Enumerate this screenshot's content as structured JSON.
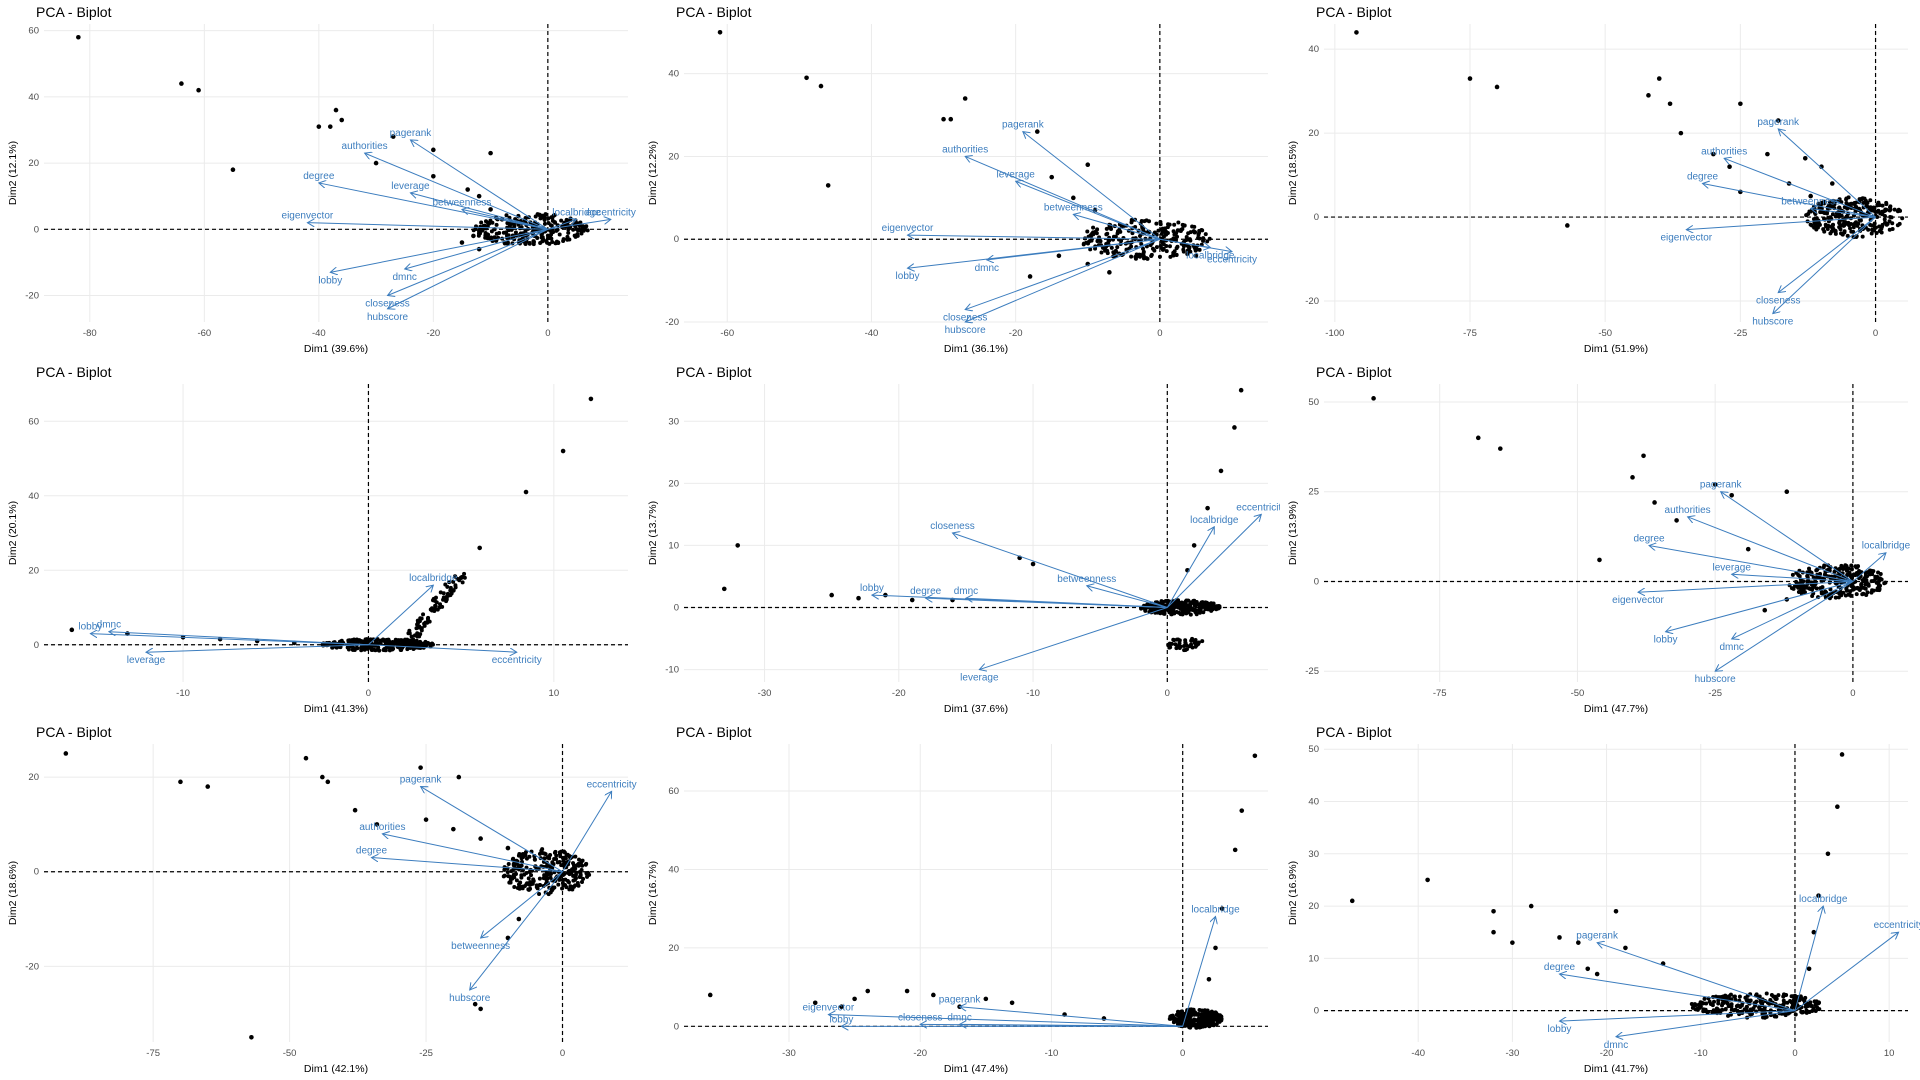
{
  "figure": {
    "colors": {
      "arrow": "#3C7DBE",
      "point": "#000000",
      "grid": "#EBEBEB",
      "axis_text": "#4D4D4D"
    }
  },
  "chart_data": [
    {
      "type": "scatter",
      "subtype": "pca-biplot",
      "title": "PCA - Biplot",
      "xlabel": "Dim1 (39.6%)",
      "ylabel": "Dim2 (12.1%)",
      "xlim": [
        -88,
        14
      ],
      "ylim": [
        -28,
        62
      ],
      "xticks": [
        -80,
        -60,
        -40,
        -20,
        0
      ],
      "yticks": [
        -20,
        0,
        20,
        40,
        60
      ],
      "points": [
        [
          -82,
          58
        ],
        [
          -64,
          44
        ],
        [
          -61,
          42
        ],
        [
          -55,
          18
        ],
        [
          -40,
          31
        ],
        [
          -38,
          31
        ],
        [
          -37,
          36
        ],
        [
          -36,
          33
        ],
        [
          -27,
          28
        ],
        [
          -20,
          24
        ],
        [
          -10,
          23
        ],
        [
          -30,
          20
        ],
        [
          -20,
          16
        ],
        [
          -14,
          12
        ],
        [
          -12,
          10
        ],
        [
          -10,
          6
        ],
        [
          -8,
          3
        ],
        [
          -15,
          -4
        ],
        [
          -12,
          -6
        ],
        [
          -13,
          -2
        ]
      ],
      "cluster": {
        "center": [
          -3,
          0
        ],
        "rx": 10,
        "ry": 6
      },
      "loadings": [
        {
          "label": "pagerank",
          "x": -24,
          "y": 27
        },
        {
          "label": "authorities",
          "x": -32,
          "y": 23
        },
        {
          "label": "degree",
          "x": -40,
          "y": 14
        },
        {
          "label": "leverage",
          "x": -24,
          "y": 11
        },
        {
          "label": "betweenness",
          "x": -15,
          "y": 6
        },
        {
          "label": "localbridge",
          "x": 5,
          "y": 3
        },
        {
          "label": "eccentricity",
          "x": 11,
          "y": 3
        },
        {
          "label": "eigenvector",
          "x": -42,
          "y": 2
        },
        {
          "label": "lobby",
          "x": -38,
          "y": -13
        },
        {
          "label": "dmnc",
          "x": -25,
          "y": -12
        },
        {
          "label": "closeness",
          "x": -28,
          "y": -20
        },
        {
          "label": "hubscore",
          "x": -28,
          "y": -24
        }
      ]
    },
    {
      "type": "scatter",
      "subtype": "pca-biplot",
      "title": "PCA - Biplot",
      "xlabel": "Dim1 (36.1%)",
      "ylabel": "Dim2 (12.2%)",
      "xlim": [
        -66,
        15
      ],
      "ylim": [
        -20,
        52
      ],
      "xticks": [
        -60,
        -40,
        -20,
        0
      ],
      "yticks": [
        -20,
        0,
        20,
        40
      ],
      "points": [
        [
          -61,
          50
        ],
        [
          -49,
          39
        ],
        [
          -47,
          37
        ],
        [
          -46,
          13
        ],
        [
          -30,
          29
        ],
        [
          -29,
          29
        ],
        [
          -27,
          34
        ],
        [
          -17,
          26
        ],
        [
          -10,
          18
        ],
        [
          -15,
          15
        ],
        [
          -12,
          10
        ],
        [
          -9,
          7
        ],
        [
          -14,
          -4
        ],
        [
          -10,
          -6
        ],
        [
          -7,
          -8
        ],
        [
          -18,
          -9
        ],
        [
          -3,
          -4
        ],
        [
          5,
          -4
        ]
      ],
      "cluster": {
        "center": [
          -2,
          0
        ],
        "rx": 9,
        "ry": 6
      },
      "loadings": [
        {
          "label": "pagerank",
          "x": -19,
          "y": 26
        },
        {
          "label": "authorities",
          "x": -27,
          "y": 20
        },
        {
          "label": "leverage",
          "x": -20,
          "y": 14
        },
        {
          "label": "betweenness",
          "x": -12,
          "y": 6
        },
        {
          "label": "eigenvector",
          "x": -35,
          "y": 1
        },
        {
          "label": "lobby",
          "x": -35,
          "y": -7
        },
        {
          "label": "dmnc",
          "x": -24,
          "y": -5
        },
        {
          "label": "closeness",
          "x": -27,
          "y": -17
        },
        {
          "label": "hubscore",
          "x": -27,
          "y": -20
        },
        {
          "label": "localbridge",
          "x": 7,
          "y": -2
        },
        {
          "label": "eccentricity",
          "x": 10,
          "y": -3
        }
      ]
    },
    {
      "type": "scatter",
      "subtype": "pca-biplot",
      "title": "PCA - Biplot",
      "xlabel": "Dim1 (51.9%)",
      "ylabel": "Dim2 (18.5%)",
      "xlim": [
        -102,
        6
      ],
      "ylim": [
        -25,
        46
      ],
      "xticks": [
        -100,
        -75,
        -50,
        -25,
        0
      ],
      "yticks": [
        -20,
        0,
        20,
        40
      ],
      "points": [
        [
          -96,
          44
        ],
        [
          -75,
          33
        ],
        [
          -70,
          31
        ],
        [
          -57,
          -2
        ],
        [
          -42,
          29
        ],
        [
          -40,
          33
        ],
        [
          -38,
          27
        ],
        [
          -36,
          20
        ],
        [
          -25,
          27
        ],
        [
          -18,
          23
        ],
        [
          -30,
          15
        ],
        [
          -27,
          12
        ],
        [
          -25,
          6
        ],
        [
          -20,
          15
        ],
        [
          -13,
          14
        ],
        [
          -10,
          12
        ],
        [
          -8,
          8
        ],
        [
          -16,
          8
        ],
        [
          -12,
          5
        ]
      ],
      "cluster": {
        "center": [
          -4,
          0
        ],
        "rx": 9,
        "ry": 6
      },
      "loadings": [
        {
          "label": "pagerank",
          "x": -18,
          "y": 21
        },
        {
          "label": "authorities",
          "x": -28,
          "y": 14
        },
        {
          "label": "degree",
          "x": -32,
          "y": 8
        },
        {
          "label": "betweenness",
          "x": -12,
          "y": 2
        },
        {
          "label": "eigenvector",
          "x": -35,
          "y": -3
        },
        {
          "label": "closeness",
          "x": -18,
          "y": -18
        },
        {
          "label": "hubscore",
          "x": -19,
          "y": -23
        }
      ]
    },
    {
      "type": "scatter",
      "subtype": "pca-biplot",
      "title": "PCA - Biplot",
      "xlabel": "Dim1 (41.3%)",
      "ylabel": "Dim2 (20.1%)",
      "xlim": [
        -17.5,
        14
      ],
      "ylim": [
        -10,
        70
      ],
      "xticks": [
        -10,
        0,
        10
      ],
      "yticks": [
        0,
        20,
        40,
        60
      ],
      "points": [
        [
          -16,
          4
        ],
        [
          12,
          66
        ],
        [
          10.5,
          52
        ],
        [
          8.5,
          41
        ],
        [
          6,
          26
        ],
        [
          5,
          18
        ],
        [
          -13,
          3
        ],
        [
          -10,
          2
        ],
        [
          -8,
          1.5
        ],
        [
          -6,
          1
        ],
        [
          -4,
          0.5
        ]
      ],
      "cluster": {
        "center": [
          0.5,
          0
        ],
        "rx": 3,
        "ry": 2
      },
      "trail": {
        "from": [
          2,
          0
        ],
        "to": [
          5,
          19
        ]
      },
      "loadings": [
        {
          "label": "lobby",
          "x": -15,
          "y": 3
        },
        {
          "label": "dmnc",
          "x": -14,
          "y": 3.5
        },
        {
          "label": "leverage",
          "x": -12,
          "y": -2
        },
        {
          "label": "localbridge",
          "x": 3.5,
          "y": 16
        },
        {
          "label": "eccentricity",
          "x": 8,
          "y": -2
        }
      ]
    },
    {
      "type": "scatter",
      "subtype": "pca-biplot",
      "title": "PCA - Biplot",
      "xlabel": "Dim1 (37.6%)",
      "ylabel": "Dim2 (13.7%)",
      "xlim": [
        -36,
        7.5
      ],
      "ylim": [
        -12,
        36
      ],
      "xticks": [
        -30,
        -20,
        -10,
        0
      ],
      "yticks": [
        -10,
        0,
        10,
        20,
        30
      ],
      "points": [
        [
          -32,
          10
        ],
        [
          -33,
          3
        ],
        [
          -25,
          2
        ],
        [
          -23,
          1.5
        ],
        [
          -21,
          2
        ],
        [
          -19,
          1.2
        ],
        [
          -16,
          1.2
        ],
        [
          -11,
          8
        ],
        [
          -10,
          7
        ],
        [
          5.5,
          35
        ],
        [
          5,
          29
        ],
        [
          4,
          22
        ],
        [
          3,
          16
        ],
        [
          2,
          10
        ],
        [
          1.5,
          6
        ]
      ],
      "cluster": {
        "center": [
          1,
          0
        ],
        "rx": 3,
        "ry": 1.5
      },
      "extra_cluster": {
        "center": [
          1.5,
          -6
        ],
        "rx": 1.5,
        "ry": 1.5
      },
      "loadings": [
        {
          "label": "closeness",
          "x": -16,
          "y": 12
        },
        {
          "label": "lobby",
          "x": -22,
          "y": 2
        },
        {
          "label": "degree",
          "x": -18,
          "y": 1.5
        },
        {
          "label": "dmnc",
          "x": -15,
          "y": 1.5
        },
        {
          "label": "betweenness",
          "x": -6,
          "y": 3.5
        },
        {
          "label": "leverage",
          "x": -14,
          "y": -10
        },
        {
          "label": "localbridge",
          "x": 3.5,
          "y": 13
        },
        {
          "label": "eccentricity",
          "x": 7,
          "y": 15
        }
      ]
    },
    {
      "type": "scatter",
      "subtype": "pca-biplot",
      "title": "PCA - Biplot",
      "xlabel": "Dim1 (47.7%)",
      "ylabel": "Dim2 (13.9%)",
      "xlim": [
        -96,
        10
      ],
      "ylim": [
        -28,
        55
      ],
      "xticks": [
        -75,
        -50,
        -25,
        0
      ],
      "yticks": [
        -25,
        0,
        25,
        50
      ],
      "points": [
        [
          -87,
          51
        ],
        [
          -68,
          40
        ],
        [
          -64,
          37
        ],
        [
          -46,
          6
        ],
        [
          -40,
          29
        ],
        [
          -38,
          35
        ],
        [
          -36,
          22
        ],
        [
          -32,
          17
        ],
        [
          -25,
          27
        ],
        [
          -22,
          24
        ],
        [
          -19,
          9
        ],
        [
          -12,
          25
        ],
        [
          -16,
          -8
        ],
        [
          -12,
          -5
        ]
      ],
      "cluster": {
        "center": [
          -3,
          0
        ],
        "rx": 9,
        "ry": 6
      },
      "loadings": [
        {
          "label": "pagerank",
          "x": -24,
          "y": 25
        },
        {
          "label": "authorities",
          "x": -30,
          "y": 18
        },
        {
          "label": "degree",
          "x": -37,
          "y": 10
        },
        {
          "label": "leverage",
          "x": -22,
          "y": 2
        },
        {
          "label": "eigenvector",
          "x": -39,
          "y": -3
        },
        {
          "label": "lobby",
          "x": -34,
          "y": -14
        },
        {
          "label": "dmnc",
          "x": -22,
          "y": -16
        },
        {
          "label": "hubscore",
          "x": -25,
          "y": -25
        },
        {
          "label": "localbridge",
          "x": 6,
          "y": 8
        }
      ]
    },
    {
      "type": "scatter",
      "subtype": "pca-biplot",
      "title": "PCA - Biplot",
      "xlabel": "Dim1 (42.1%)",
      "ylabel": "Dim2 (18.6%)",
      "xlim": [
        -95,
        12
      ],
      "ylim": [
        -36,
        27
      ],
      "xticks": [
        -75,
        -50,
        -25,
        0
      ],
      "yticks": [
        -20,
        0,
        20
      ],
      "points": [
        [
          -91,
          25
        ],
        [
          -70,
          19
        ],
        [
          -65,
          18
        ],
        [
          -57,
          -35
        ],
        [
          -47,
          24
        ],
        [
          -44,
          20
        ],
        [
          -43,
          19
        ],
        [
          -38,
          13
        ],
        [
          -34,
          10
        ],
        [
          -26,
          22
        ],
        [
          -19,
          20
        ],
        [
          -16,
          -28
        ],
        [
          -15,
          -29
        ],
        [
          -25,
          11
        ],
        [
          -20,
          9
        ],
        [
          -15,
          7
        ],
        [
          -10,
          5
        ],
        [
          -8,
          -10
        ],
        [
          -10,
          -14
        ]
      ],
      "cluster": {
        "center": [
          -3,
          0
        ],
        "rx": 8,
        "ry": 6
      },
      "loadings": [
        {
          "label": "pagerank",
          "x": -26,
          "y": 18
        },
        {
          "label": "authorities",
          "x": -33,
          "y": 8
        },
        {
          "label": "degree",
          "x": -35,
          "y": 3
        },
        {
          "label": "betweenness",
          "x": -15,
          "y": -14
        },
        {
          "label": "hubscore",
          "x": -17,
          "y": -25
        },
        {
          "label": "eccentricity",
          "x": 9,
          "y": 17
        }
      ]
    },
    {
      "type": "scatter",
      "subtype": "pca-biplot",
      "title": "PCA - Biplot",
      "xlabel": "Dim1 (47.4%)",
      "ylabel": "Dim2 (16.7%)",
      "xlim": [
        -38,
        6.5
      ],
      "ylim": [
        -4,
        72
      ],
      "xticks": [
        -30,
        -20,
        -10,
        0
      ],
      "yticks": [
        0,
        20,
        40,
        60
      ],
      "points": [
        [
          -36,
          8
        ],
        [
          -28,
          6
        ],
        [
          -26,
          5
        ],
        [
          -25,
          7
        ],
        [
          -24,
          9
        ],
        [
          -21,
          9
        ],
        [
          -19,
          8
        ],
        [
          -17,
          5
        ],
        [
          -15,
          7
        ],
        [
          -13,
          6
        ],
        [
          5.5,
          69
        ],
        [
          4.5,
          55
        ],
        [
          4,
          45
        ],
        [
          3,
          30
        ],
        [
          2.5,
          20
        ],
        [
          2,
          12
        ],
        [
          -9,
          3
        ],
        [
          -6,
          2
        ]
      ],
      "cluster": {
        "center": [
          1,
          2
        ],
        "rx": 2,
        "ry": 3
      },
      "loadings": [
        {
          "label": "pagerank",
          "x": -17,
          "y": 5
        },
        {
          "label": "eigenvector",
          "x": -27,
          "y": 3
        },
        {
          "label": "lobby",
          "x": -26,
          "y": 0
        },
        {
          "label": "closeness",
          "x": -20,
          "y": 0.5
        },
        {
          "label": "dmnc",
          "x": -17,
          "y": 0.5
        },
        {
          "label": "localbridge",
          "x": 2.5,
          "y": 28
        }
      ]
    },
    {
      "type": "scatter",
      "subtype": "pca-biplot",
      "title": "PCA - Biplot",
      "xlabel": "Dim1 (41.7%)",
      "ylabel": "Dim2 (16.9%)",
      "xlim": [
        -50,
        12
      ],
      "ylim": [
        -6,
        51
      ],
      "xticks": [
        -40,
        -30,
        -20,
        -10,
        0,
        10
      ],
      "yticks": [
        0,
        10,
        20,
        30,
        40,
        50
      ],
      "points": [
        [
          -47,
          21
        ],
        [
          -39,
          25
        ],
        [
          -32,
          19
        ],
        [
          -32,
          15
        ],
        [
          -30,
          13
        ],
        [
          -28,
          20
        ],
        [
          -25,
          14
        ],
        [
          -23,
          13
        ],
        [
          -22,
          8
        ],
        [
          -21,
          7
        ],
        [
          -19,
          19
        ],
        [
          -18,
          12
        ],
        [
          -14,
          9
        ],
        [
          5,
          49
        ],
        [
          4.5,
          39
        ],
        [
          3.5,
          30
        ],
        [
          2.5,
          22
        ],
        [
          2,
          15
        ],
        [
          1.5,
          8
        ]
      ],
      "cluster": {
        "center": [
          -4,
          1
        ],
        "rx": 7,
        "ry": 3
      },
      "loadings": [
        {
          "label": "pagerank",
          "x": -21,
          "y": 13
        },
        {
          "label": "degree",
          "x": -25,
          "y": 7
        },
        {
          "label": "lobby",
          "x": -25,
          "y": -2
        },
        {
          "label": "dmnc",
          "x": -19,
          "y": -5
        },
        {
          "label": "localbridge",
          "x": 3,
          "y": 20
        },
        {
          "label": "eccentricity",
          "x": 11,
          "y": 15
        }
      ]
    }
  ]
}
